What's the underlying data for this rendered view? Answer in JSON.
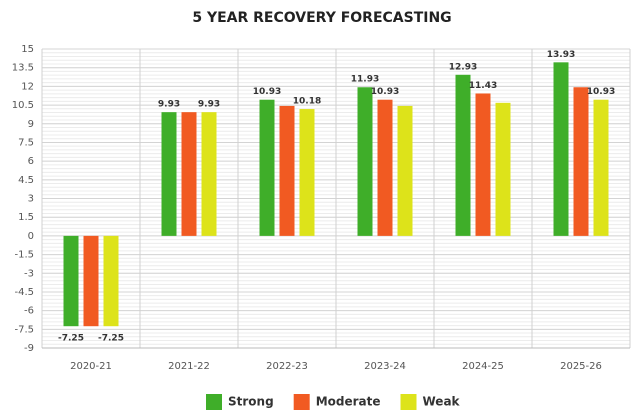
{
  "chart_data": {
    "type": "bar",
    "title": "5 YEAR RECOVERY FORECASTING",
    "categories": [
      "2020-21",
      "2021-22",
      "2022-23",
      "2023-24",
      "2024-25",
      "2025-26"
    ],
    "series": [
      {
        "name": "Strong",
        "color": "#3fae29",
        "values": [
          -7.25,
          9.93,
          10.93,
          11.93,
          12.93,
          13.93
        ],
        "labeled": [
          true,
          true,
          true,
          true,
          true,
          true
        ]
      },
      {
        "name": "Moderate",
        "color": "#f15a22",
        "values": [
          -7.25,
          9.93,
          10.43,
          10.93,
          11.43,
          11.93
        ],
        "labeled": [
          false,
          false,
          false,
          true,
          true,
          false
        ]
      },
      {
        "name": "Weak",
        "color": "#dde31a",
        "values": [
          -7.25,
          9.93,
          10.18,
          10.43,
          10.68,
          10.93
        ],
        "labeled": [
          true,
          true,
          true,
          false,
          false,
          true
        ]
      }
    ],
    "ylim": [
      -9,
      15
    ],
    "yticks": [
      -9,
      -7.5,
      -6,
      -4.5,
      -3,
      -1.5,
      0,
      1.5,
      3,
      4.5,
      6,
      7.5,
      9,
      10.5,
      12,
      13.5,
      15
    ],
    "grid": true,
    "legend": "bottom"
  }
}
